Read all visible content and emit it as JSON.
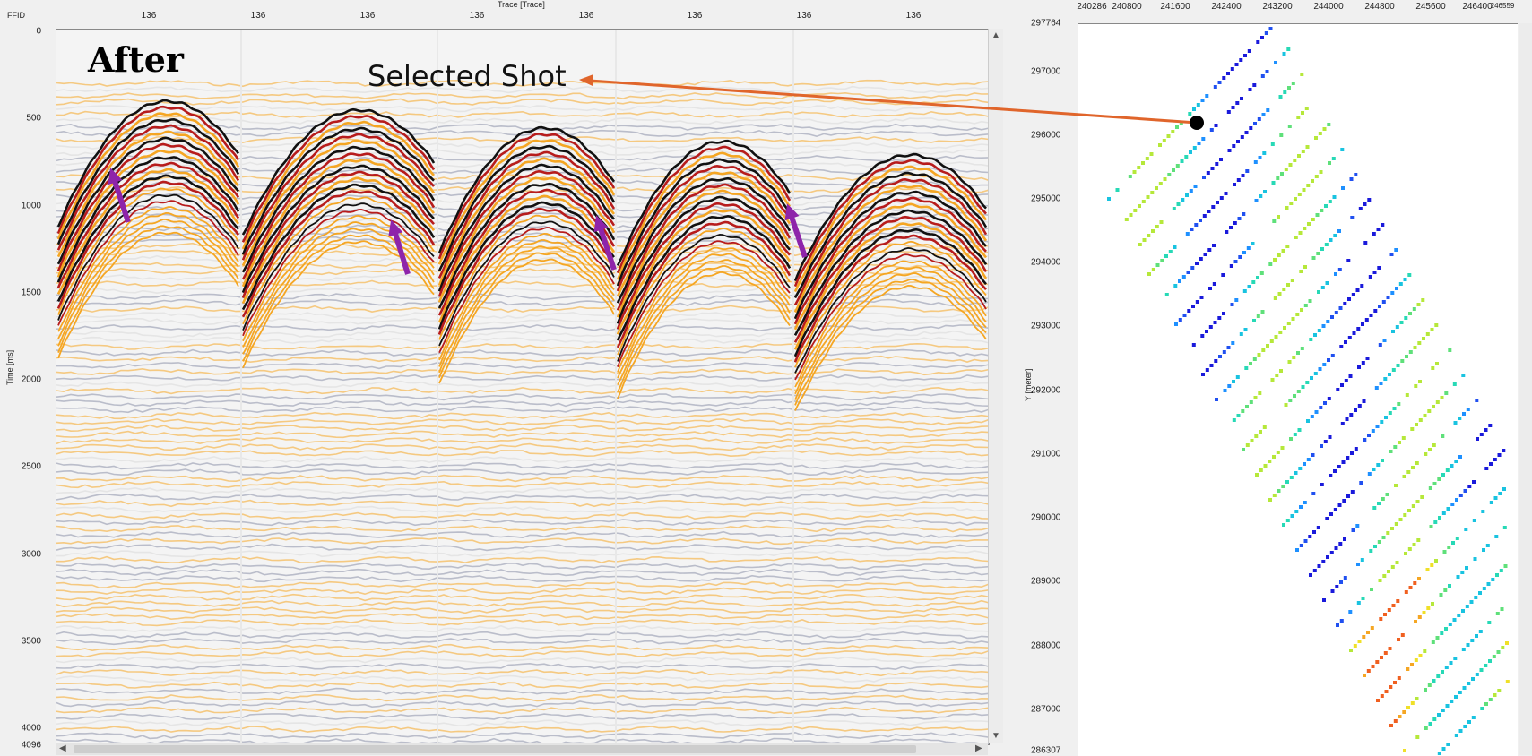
{
  "seismic": {
    "header_label": "FFID",
    "x_axis_title": "Trace [Trace]",
    "ffid_ticks": [
      "136",
      "136",
      "136",
      "136",
      "136",
      "136",
      "136",
      "136"
    ],
    "y_axis_title": "Time [ms]",
    "time_ticks": [
      "0",
      "500",
      "1000",
      "1500",
      "2000",
      "2500",
      "3000",
      "3500",
      "4000",
      "4096"
    ],
    "panel_title": "After",
    "annotation_label": "Selected Shot",
    "colors": {
      "peak": "#b71c1c",
      "trough": "#1a237e",
      "amber": "#f5a623",
      "arrow": "#8e24aa",
      "pointer": "#e0652b"
    }
  },
  "map": {
    "x_ticks": [
      "240286",
      "240800",
      "241600",
      "242400",
      "243200",
      "244000",
      "244800",
      "245600",
      "246400",
      "246559"
    ],
    "y_ticks": [
      "297764",
      "297000",
      "296000",
      "295000",
      "294000",
      "293000",
      "292000",
      "291000",
      "290000",
      "289000",
      "288000",
      "287000",
      "286307"
    ],
    "y_axis_title": "Y [meter]"
  }
}
